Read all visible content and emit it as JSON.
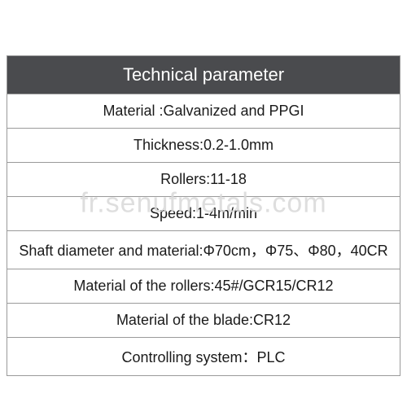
{
  "table": {
    "header": "Technical parameter",
    "header_bg": "#4a4b4e",
    "header_color": "#ffffff",
    "header_fontsize": 22,
    "border_color": "#9a9a9a",
    "border_width": 1,
    "cell_bg": "#ffffff",
    "cell_color": "#1a1a1a",
    "cell_fontsize": 18,
    "rows": [
      "Material :Galvanized and PPGI",
      "Thickness:0.2-1.0mm",
      "Rollers:11-18",
      "Speed:1-4m/min",
      "Shaft diameter and material:Φ70cm，Φ75、Φ80，40CR",
      "Material of the rollers:45#/GCR15/CR12",
      "Material of the blade:CR12",
      "Controlling system：PLC"
    ]
  },
  "watermark": {
    "text": "fr.senufmetals.com",
    "color": "#d9d9d9",
    "opacity": 0.85,
    "fontsize": 34
  }
}
